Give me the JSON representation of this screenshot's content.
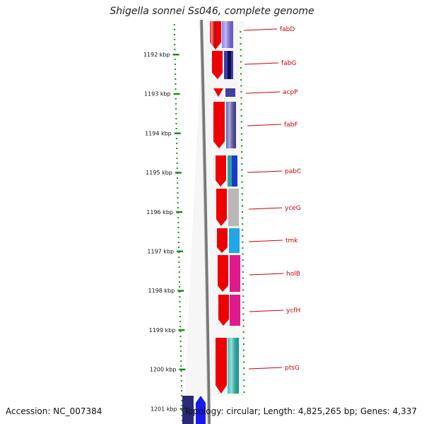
{
  "title": "Shigella sonnei Ss046, complete genome",
  "accession": "Accession: NC_007384",
  "summary": "Topology: circular; Length: 4,825,265 bp; Genes: 4,337",
  "scale_labels": [
    "1192 kbp",
    "1193 kbp",
    "1194 kbp",
    "1195 kbp",
    "1196 kbp",
    "1197 kbp",
    "1198 kbp",
    "1199 kbp",
    "1200 kbp",
    "1201 kbp"
  ],
  "genes": [
    {
      "name": "fabD",
      "color": "#7b68ee"
    },
    {
      "name": "fabG",
      "color": "#1a1a8c"
    },
    {
      "name": "acpP",
      "color": "#4040a0"
    },
    {
      "name": "fabF",
      "color": "#4a4aa8"
    },
    {
      "name": "pabC",
      "color": "#1a3acc"
    },
    {
      "name": "yceG",
      "color": "#b8b8b8"
    },
    {
      "name": "tmk",
      "color": "#1ea8e8"
    },
    {
      "name": "holB",
      "color": "#e01a8c"
    },
    {
      "name": "ycfH",
      "color": "#e01a8c"
    },
    {
      "name": "ptsG",
      "color": "#1ab8b0"
    }
  ]
}
